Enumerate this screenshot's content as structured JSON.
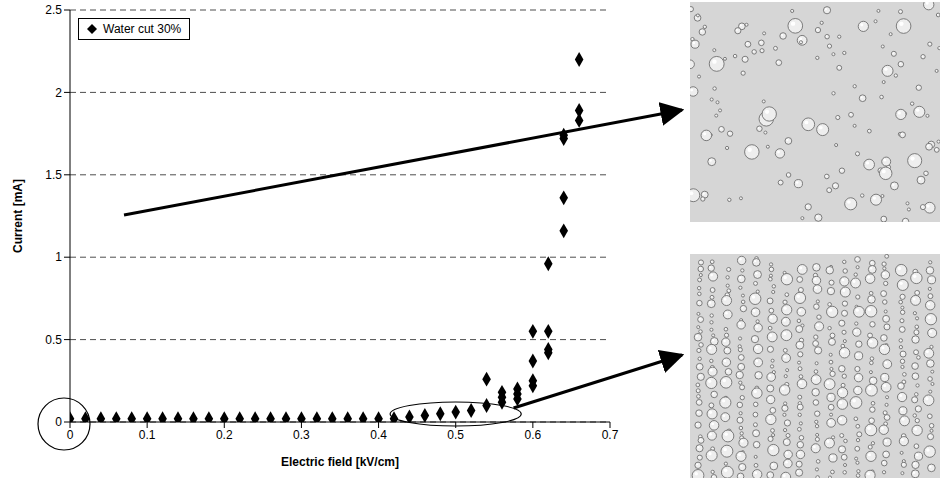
{
  "chart_data": {
    "type": "scatter",
    "x_label": "Electric field [kV/cm]",
    "y_label": "Current [mA]",
    "xlim": [
      0,
      0.7
    ],
    "xticks": [
      0,
      0.1,
      0.2,
      0.3,
      0.4,
      0.5,
      0.6,
      0.7
    ],
    "ylim": [
      0,
      2.5
    ],
    "yticks": [
      0,
      0.5,
      1,
      1.5,
      2,
      2.5
    ],
    "grid": true,
    "legend": "upper left",
    "series": [
      {
        "name": "Water cut 30%",
        "color": "#000000",
        "marker": "diamond",
        "x": [
          0,
          0.02,
          0.04,
          0.06,
          0.08,
          0.1,
          0.12,
          0.14,
          0.16,
          0.18,
          0.2,
          0.22,
          0.24,
          0.26,
          0.28,
          0.3,
          0.32,
          0.34,
          0.36,
          0.38,
          0.4,
          0.42,
          0.44,
          0.46,
          0.48,
          0.5,
          0.52,
          0.54,
          0.54,
          0.56,
          0.56,
          0.56,
          0.58,
          0.58,
          0.58,
          0.6,
          0.6,
          0.6,
          0.6,
          0.62,
          0.62,
          0.62,
          0.62,
          0.64,
          0.64,
          0.64,
          0.64,
          0.66,
          0.66,
          0.66
        ],
        "values": [
          0.02,
          0.02,
          0.02,
          0.02,
          0.02,
          0.02,
          0.02,
          0.02,
          0.02,
          0.02,
          0.02,
          0.02,
          0.02,
          0.02,
          0.02,
          0.02,
          0.02,
          0.02,
          0.02,
          0.02,
          0.02,
          0.02,
          0.03,
          0.04,
          0.05,
          0.06,
          0.07,
          0.1,
          0.26,
          0.12,
          0.15,
          0.18,
          0.14,
          0.17,
          0.2,
          0.22,
          0.25,
          0.37,
          0.55,
          0.42,
          0.44,
          0.55,
          0.96,
          1.16,
          1.36,
          1.72,
          1.74,
          1.83,
          1.89,
          2.2
        ]
      }
    ]
  }
}
